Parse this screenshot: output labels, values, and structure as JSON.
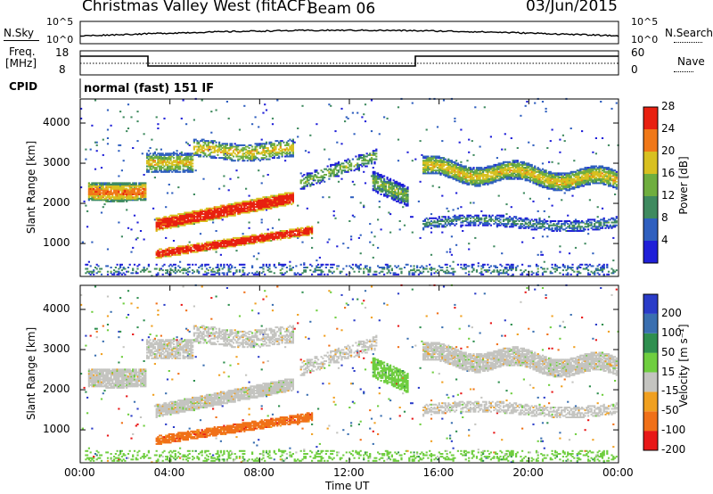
{
  "header": {
    "title": "Christmas Valley West (fitACF)",
    "beam": "Beam 06",
    "date": "03/Jun/2015"
  },
  "top_panels": {
    "nsky_label": "N.Sky",
    "nsearch_label": "N.Search",
    "nsky_ticks": [
      "10^5",
      "10^0"
    ],
    "nsearch_ticks": [
      "10^5",
      "10^0"
    ],
    "freq_label": "Freq.",
    "freq_unit": "[MHz]",
    "freq_ticks": [
      "18",
      "8"
    ],
    "nave_label": "Nave",
    "nave_ticks": [
      "60",
      "0"
    ],
    "cpid_label": "CPID",
    "cpid_text": "normal (fast) 151 IF"
  },
  "chart_data": [
    {
      "type": "heatmap",
      "panel": "power",
      "ylabel": "Slant Range [km]",
      "xlabel": "Time UT",
      "yticks": [
        1000,
        2000,
        3000,
        4000
      ],
      "ylim": [
        180,
        4600
      ],
      "xlim": [
        0,
        24
      ],
      "xticks": [
        "00:00",
        "04:00",
        "08:00",
        "12:00",
        "16:00",
        "20:00",
        "00:00"
      ],
      "colorbar": {
        "label": "Power [dB]",
        "ticks": [
          "4",
          "8",
          "12",
          "16",
          "20",
          "24",
          "28"
        ],
        "colors": [
          "#1f1fd8",
          "#2f5fbf",
          "#3f8a5f",
          "#6fae3f",
          "#d8c020",
          "#f07818",
          "#e82010"
        ]
      }
    },
    {
      "type": "heatmap",
      "panel": "velocity",
      "ylabel": "Slant Range [km]",
      "xlabel": "Time UT",
      "yticks": [
        1000,
        2000,
        3000,
        4000
      ],
      "ylim": [
        180,
        4600
      ],
      "xlim": [
        0,
        24
      ],
      "xticks": [
        "00:00",
        "04:00",
        "08:00",
        "12:00",
        "16:00",
        "20:00",
        "00:00"
      ],
      "colorbar": {
        "label": "Velocity [m s⁻¹]",
        "ticks": [
          "200",
          "100",
          "50",
          "15",
          "-15",
          "-50",
          "-100",
          "-200"
        ],
        "colors": [
          "#2a3cc8",
          "#3a6fb0",
          "#2f8f4f",
          "#6fce3f",
          "#c4c4c0",
          "#f0a020",
          "#f07018",
          "#e81818"
        ]
      }
    }
  ],
  "xaxis": {
    "label": "Time UT",
    "ticks": [
      "00:00",
      "04:00",
      "08:00",
      "12:00",
      "16:00",
      "20:00",
      "00:00"
    ]
  }
}
